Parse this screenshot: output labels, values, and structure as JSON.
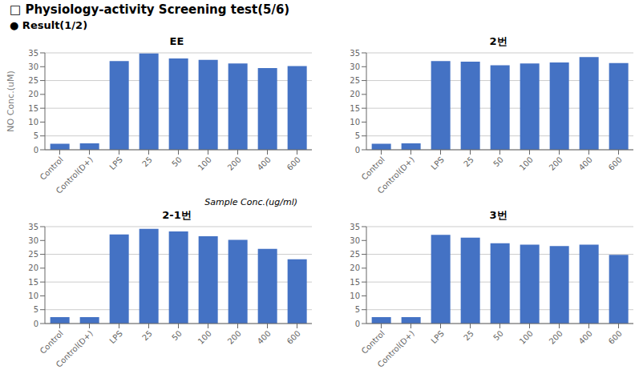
{
  "title": "□ Physiology-activity Screening test(5/6)",
  "subtitle": "● Result(1/2)",
  "chart_data": [
    {
      "type": "bar",
      "title": "EE",
      "categories": [
        "Control",
        "Control(D+)",
        "LPS",
        "25",
        "50",
        "100",
        "200",
        "400",
        "600"
      ],
      "values": [
        2.2,
        2.3,
        32.0,
        34.8,
        33.0,
        32.5,
        31.2,
        29.5,
        30.2
      ],
      "color": "#4472C4",
      "ylim": [
        0,
        35
      ],
      "yticks": [
        0,
        5,
        10,
        15,
        20,
        25,
        30,
        35
      ],
      "grid": true,
      "ylabel": "NO Conc.(uM)",
      "xlabel": "Sample Conc.(ug/ml)"
    },
    {
      "type": "bar",
      "title": "2번",
      "categories": [
        "Control",
        "Control(D+)",
        "LPS",
        "25",
        "50",
        "100",
        "200",
        "400",
        "600"
      ],
      "values": [
        2.2,
        2.3,
        32.0,
        31.8,
        30.5,
        31.2,
        31.5,
        33.5,
        31.3
      ],
      "color": "#4472C4",
      "ylim": [
        0,
        35
      ],
      "yticks": [
        0,
        5,
        10,
        15,
        20,
        25,
        30,
        35
      ],
      "grid": true
    },
    {
      "type": "bar",
      "title": "2-1번",
      "categories": [
        "Control",
        "Control(D+)",
        "LPS",
        "25",
        "50",
        "100",
        "200",
        "400",
        "600"
      ],
      "values": [
        2.3,
        2.3,
        32.2,
        34.2,
        33.3,
        31.5,
        30.2,
        27.0,
        23.2
      ],
      "color": "#4472C4",
      "ylim": [
        0,
        35
      ],
      "yticks": [
        0,
        5,
        10,
        15,
        20,
        25,
        30,
        35
      ],
      "grid": true
    },
    {
      "type": "bar",
      "title": "3번",
      "categories": [
        "Control",
        "Control(D+)",
        "LPS",
        "25",
        "50",
        "100",
        "200",
        "400",
        "600"
      ],
      "values": [
        2.3,
        2.3,
        32.0,
        31.0,
        29.0,
        28.5,
        28.0,
        28.5,
        24.8
      ],
      "color": "#4472C4",
      "ylim": [
        0,
        35
      ],
      "yticks": [
        0,
        5,
        10,
        15,
        20,
        25,
        30,
        35
      ],
      "grid": true
    }
  ]
}
